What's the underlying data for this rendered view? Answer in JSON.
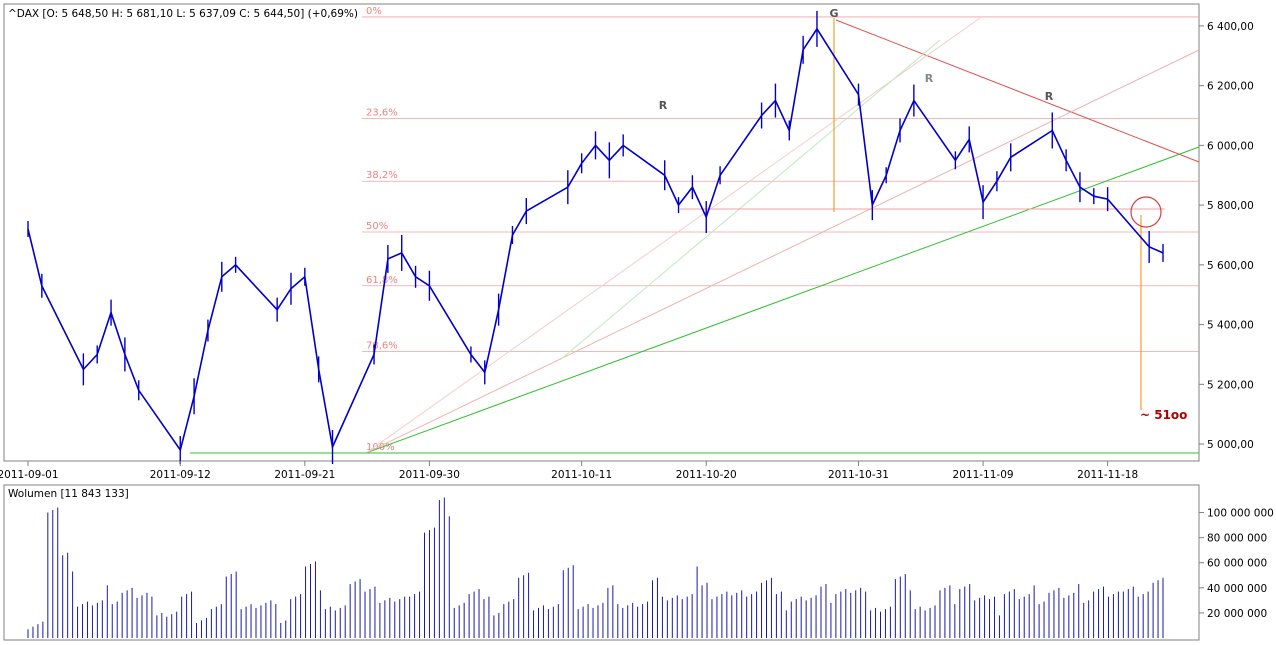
{
  "header": {
    "price_legend": "^DAX [O: 5 648,50  H: 5 681,10  L: 5 637,09  C: 5 644,50] (+0,69%)",
    "volume_legend": "Wolumen [11 843 133]"
  },
  "annotations": {
    "target": "~ 51oo",
    "g_label": "G",
    "r_labels": [
      "R",
      "R",
      "R"
    ]
  },
  "colors": {
    "price": "#0000cc",
    "volume": "#1a1aa6",
    "resistance": "#e05050",
    "support": "#30c030",
    "fib": "#f0a0a0",
    "orange": "#f0a030",
    "target": "#b00000"
  },
  "chart_data": [
    {
      "type": "line",
      "title": "^DAX",
      "series": [
        {
          "name": "^DAX",
          "x": [
            "2011-09-01",
            "2011-09-02",
            "2011-09-05",
            "2011-09-06",
            "2011-09-07",
            "2011-09-08",
            "2011-09-09",
            "2011-09-12",
            "2011-09-13",
            "2011-09-14",
            "2011-09-15",
            "2011-09-16",
            "2011-09-19",
            "2011-09-20",
            "2011-09-21",
            "2011-09-22",
            "2011-09-23",
            "2011-09-26",
            "2011-09-27",
            "2011-09-28",
            "2011-09-29",
            "2011-09-30",
            "2011-10-03",
            "2011-10-04",
            "2011-10-05",
            "2011-10-06",
            "2011-10-07",
            "2011-10-10",
            "2011-10-11",
            "2011-10-12",
            "2011-10-13",
            "2011-10-14",
            "2011-10-17",
            "2011-10-18",
            "2011-10-19",
            "2011-10-20",
            "2011-10-21",
            "2011-10-24",
            "2011-10-25",
            "2011-10-26",
            "2011-10-27",
            "2011-10-28",
            "2011-10-31",
            "2011-11-01",
            "2011-11-02",
            "2011-11-03",
            "2011-11-04",
            "2011-11-07",
            "2011-11-08",
            "2011-11-09",
            "2011-11-10",
            "2011-11-11",
            "2011-11-14",
            "2011-11-15",
            "2011-11-16",
            "2011-11-17",
            "2011-11-18",
            "2011-11-21",
            "2011-11-22"
          ],
          "values": [
            5720,
            5530,
            5250,
            5300,
            5440,
            5300,
            5180,
            4980,
            5160,
            5380,
            5560,
            5600,
            5450,
            5520,
            5560,
            5250,
            4990,
            5300,
            5620,
            5640,
            5560,
            5530,
            5300,
            5240,
            5450,
            5700,
            5780,
            5860,
            5940,
            6000,
            5950,
            6000,
            5900,
            5800,
            5860,
            5760,
            5900,
            6100,
            6150,
            6050,
            6320,
            6390,
            6170,
            5800,
            5900,
            6050,
            6150,
            5950,
            6020,
            5810,
            5880,
            5960,
            6050,
            5950,
            5860,
            5830,
            5820,
            5660,
            5640
          ]
        }
      ],
      "ylim": [
        4960,
        6460
      ],
      "yticks": [
        "5 000,00",
        "5 200,00",
        "5 400,00",
        "5 600,00",
        "5 800,00",
        "6 000,00",
        "6 200,00",
        "6 400,00"
      ],
      "ytick_values": [
        5000,
        5200,
        5400,
        5600,
        5800,
        6000,
        6200,
        6400
      ],
      "xticks": [
        "2011-09-01",
        "2011-09-12",
        "2011-09-21",
        "2011-09-30",
        "2011-10-11",
        "2011-10-20",
        "2011-10-31",
        "2011-11-09",
        "2011-11-18"
      ],
      "fib_levels": [
        {
          "label": "0%",
          "value": 6430
        },
        {
          "label": "23,6%",
          "value": 6090
        },
        {
          "label": "38,2%",
          "value": 5880
        },
        {
          "label": "50%",
          "value": 5710
        },
        {
          "label": "61,8%",
          "value": 5530
        },
        {
          "label": "78,6%",
          "value": 5310
        },
        {
          "label": "100%",
          "value": 4970
        }
      ],
      "grid": false,
      "legend": "top-left"
    },
    {
      "type": "bar",
      "title": "Wolumen",
      "ylim": [
        0,
        110000000
      ],
      "yticks": [
        "20 000 000",
        "40 000 000",
        "60 000 000",
        "80 000 000",
        "100 000 000"
      ],
      "ytick_values": [
        20000000,
        40000000,
        60000000,
        80000000,
        100000000
      ],
      "volume_levels": [
        15,
        100,
        60,
        30,
        25,
        35,
        40,
        30,
        25,
        20,
        30,
        20,
        25,
        45,
        30,
        25,
        20,
        35,
        55,
        30,
        25,
        40,
        45,
        30,
        25,
        40,
        85,
        105,
        30,
        35,
        25,
        30,
        45,
        30,
        25,
        50,
        30,
        25,
        35,
        30,
        25,
        40,
        35,
        30,
        50,
        35,
        30,
        40,
        45,
        30,
        35,
        30,
        35,
        40,
        35,
        30,
        25,
        45,
        30,
        25,
        35,
        45,
        30,
        25,
        40,
        30,
        35,
        40,
        30,
        35,
        40,
        30,
        45,
        35,
        40
      ]
    }
  ]
}
